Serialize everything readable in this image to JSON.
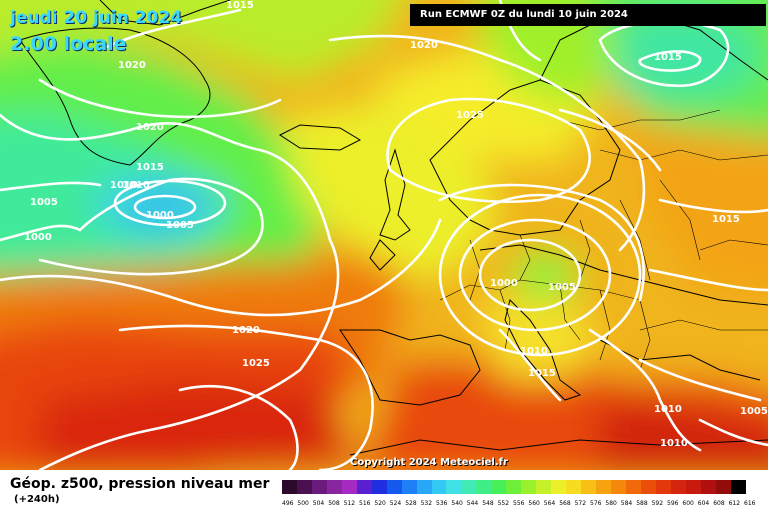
{
  "header": {
    "date": "jeudi 20 juin 2024",
    "local_time": "2.00 locale",
    "run_info": "Run ECMWF 0Z du lundi 10 juin 2024"
  },
  "copyright": "Copyright 2024 Meteociel.fr",
  "footer": {
    "title": "Géop. z500, pression niveau mer",
    "subtitle": "(+240h)"
  },
  "isobar_labels": [
    "1015",
    "1020",
    "1020",
    "1020",
    "1025",
    "1015",
    "1015",
    "1010",
    "1010",
    "1005",
    "1000",
    "1005",
    "1000",
    "1005",
    "1015",
    "1020",
    "1025",
    "1010",
    "1015",
    "1010",
    "1005",
    "1010"
  ],
  "legend": {
    "labels": [
      "496",
      "500",
      "504",
      "508",
      "512",
      "516",
      "520",
      "524",
      "528",
      "532",
      "536",
      "540",
      "544",
      "548",
      "552",
      "556",
      "560",
      "564",
      "568",
      "572",
      "576",
      "580",
      "584",
      "588",
      "592",
      "596",
      "600",
      "604",
      "608",
      "612",
      "616"
    ],
    "colors": [
      "#2b0a2b",
      "#4a1050",
      "#6a1b7c",
      "#8a25a0",
      "#a52bc4",
      "#5a1fd0",
      "#1f2fe0",
      "#1659ee",
      "#1f80f5",
      "#27a7f6",
      "#33c8f5",
      "#3fe0e6",
      "#3feab5",
      "#3fee86",
      "#47f05a",
      "#6ef03a",
      "#9af02c",
      "#c5f02a",
      "#ecf02a",
      "#f7dc20",
      "#f8c016",
      "#f7a310",
      "#f4870c",
      "#f06a0a",
      "#ea4f0a",
      "#e3380c",
      "#d6250e",
      "#c91a10",
      "#b01010",
      "#920c0c",
      "#000000"
    ]
  }
}
